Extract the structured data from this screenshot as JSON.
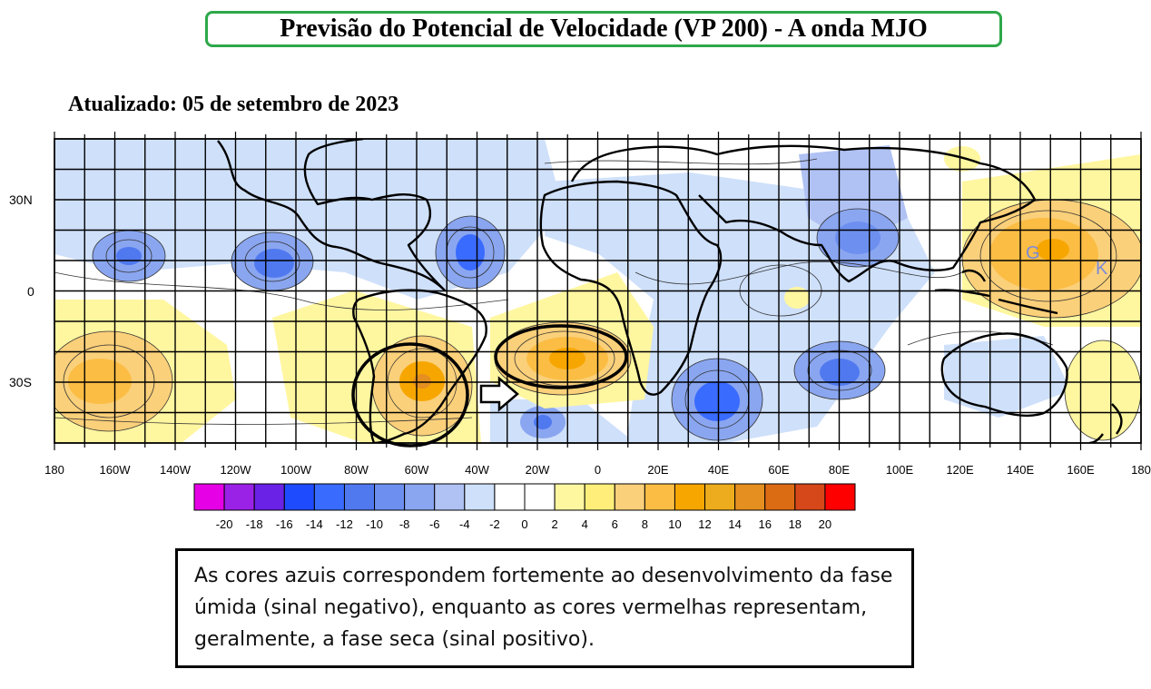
{
  "header": {
    "title": "Previsão do Potencial de Velocidade (VP 200) - A onda MJO",
    "updated": "Atualizado: 05 de setembro de 2023"
  },
  "map": {
    "lon_labels": [
      "180",
      "160W",
      "140W",
      "120W",
      "100W",
      "80W",
      "60W",
      "40W",
      "20W",
      "0",
      "20E",
      "40E",
      "60E",
      "80E",
      "100E",
      "120E",
      "140E",
      "160E",
      "180"
    ],
    "lat_labels": [
      "30N",
      "0",
      "30S"
    ],
    "markers": {
      "g": "G",
      "k": "K"
    }
  },
  "colorbar": {
    "colors": [
      "#e600e6",
      "#9a22e6",
      "#6a22e6",
      "#1f4bff",
      "#3a6bff",
      "#5079f0",
      "#6d8ff0",
      "#8aa6f0",
      "#b0c2f4",
      "#cfe0fa",
      "#ffffff",
      "#ffffff",
      "#fff6a0",
      "#ffef7a",
      "#fbd07a",
      "#fbbd44",
      "#f7a600",
      "#ecac1d",
      "#e48f20",
      "#dc6c14",
      "#d6481a",
      "#ff0000"
    ],
    "labels": [
      "-20",
      "-18",
      "-16",
      "-14",
      "-12",
      "-10",
      "-8",
      "-6",
      "-4",
      "-2",
      "0",
      "2",
      "4",
      "6",
      "8",
      "10",
      "12",
      "14",
      "16",
      "18",
      "20"
    ]
  },
  "caption": {
    "text": "As cores azuis correspondem fortemente ao desenvolvimento da fase úmida (sinal negativo), enquanto as cores vermelhas representam, geralmente, a fase seca (sinal positivo)."
  }
}
